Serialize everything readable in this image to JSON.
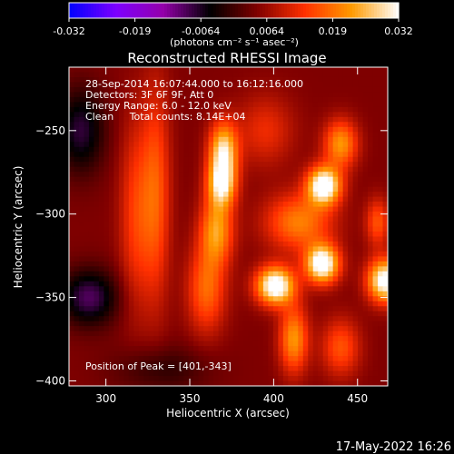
{
  "chart_data": {
    "type": "heatmap",
    "title": "Reconstructed RHESSI Image",
    "xlabel": "Heliocentric X (arcsec)",
    "ylabel": "Heliocentric Y (arcsec)",
    "xlim": [
      278,
      468
    ],
    "ylim": [
      -403,
      -212
    ],
    "xticks": [
      300,
      350,
      400,
      450
    ],
    "yticks": [
      -400,
      -350,
      -300,
      -250
    ],
    "colorbar": {
      "min": -0.032,
      "max": 0.032,
      "ticks": [
        "-0.032",
        "-0.019",
        "-0.0064",
        "0.0064",
        "0.019",
        "0.032"
      ],
      "label": "(photons cm⁻² s⁻¹ asec⁻²)",
      "colors": [
        "#0000ff",
        "#7d00ff",
        "#9400aa",
        "#000000",
        "#800000",
        "#ff3000",
        "#ff9a00",
        "#ffffff"
      ]
    },
    "annotations": [
      "28-Sep-2014 16:07:44.000 to 16:12:16.000",
      "Detectors: 3F 6F 9F, Att 0",
      "Energy Range: 6.0 - 12.0 keV",
      "Clean     Total counts: 8.14E+04"
    ],
    "peak_text": "Position of Peak = [401,-343]",
    "sources": [
      {
        "x": 370,
        "y": -262,
        "value": 0.024,
        "sx": 6,
        "sy": 12
      },
      {
        "x": 369,
        "y": -282,
        "value": 0.024,
        "sx": 6,
        "sy": 10
      },
      {
        "x": 366,
        "y": -310,
        "value": 0.018,
        "sx": 7,
        "sy": 14
      },
      {
        "x": 360,
        "y": -345,
        "value": 0.014,
        "sx": 8,
        "sy": 18
      },
      {
        "x": 330,
        "y": -288,
        "value": 0.012,
        "sx": 6,
        "sy": 45
      },
      {
        "x": 318,
        "y": -300,
        "value": 0.01,
        "sx": 7,
        "sy": 40
      },
      {
        "x": 430,
        "y": -283,
        "value": 0.032,
        "sx": 7,
        "sy": 8
      },
      {
        "x": 429,
        "y": -330,
        "value": 0.032,
        "sx": 7,
        "sy": 8
      },
      {
        "x": 401,
        "y": -343,
        "value": 0.032,
        "sx": 8,
        "sy": 8
      },
      {
        "x": 466,
        "y": -340,
        "value": 0.03,
        "sx": 7,
        "sy": 9
      },
      {
        "x": 440,
        "y": -258,
        "value": 0.018,
        "sx": 7,
        "sy": 10
      },
      {
        "x": 415,
        "y": -305,
        "value": 0.016,
        "sx": 14,
        "sy": 12
      },
      {
        "x": 412,
        "y": -375,
        "value": 0.018,
        "sx": 6,
        "sy": 14
      },
      {
        "x": 440,
        "y": -380,
        "value": 0.012,
        "sx": 8,
        "sy": 12
      },
      {
        "x": 395,
        "y": -250,
        "value": 0.008,
        "sx": 12,
        "sy": 15
      },
      {
        "x": 462,
        "y": -305,
        "value": 0.012,
        "sx": 5,
        "sy": 10
      },
      {
        "x": 285,
        "y": -250,
        "value": -0.012,
        "sx": 10,
        "sy": 18
      },
      {
        "x": 290,
        "y": -350,
        "value": -0.014,
        "sx": 12,
        "sy": 12
      },
      {
        "x": 333,
        "y": -393,
        "value": -0.006,
        "sx": 20,
        "sy": 10
      }
    ],
    "background": 0.0045
  },
  "footer": {
    "timestamp": "17-May-2022 16:26"
  }
}
